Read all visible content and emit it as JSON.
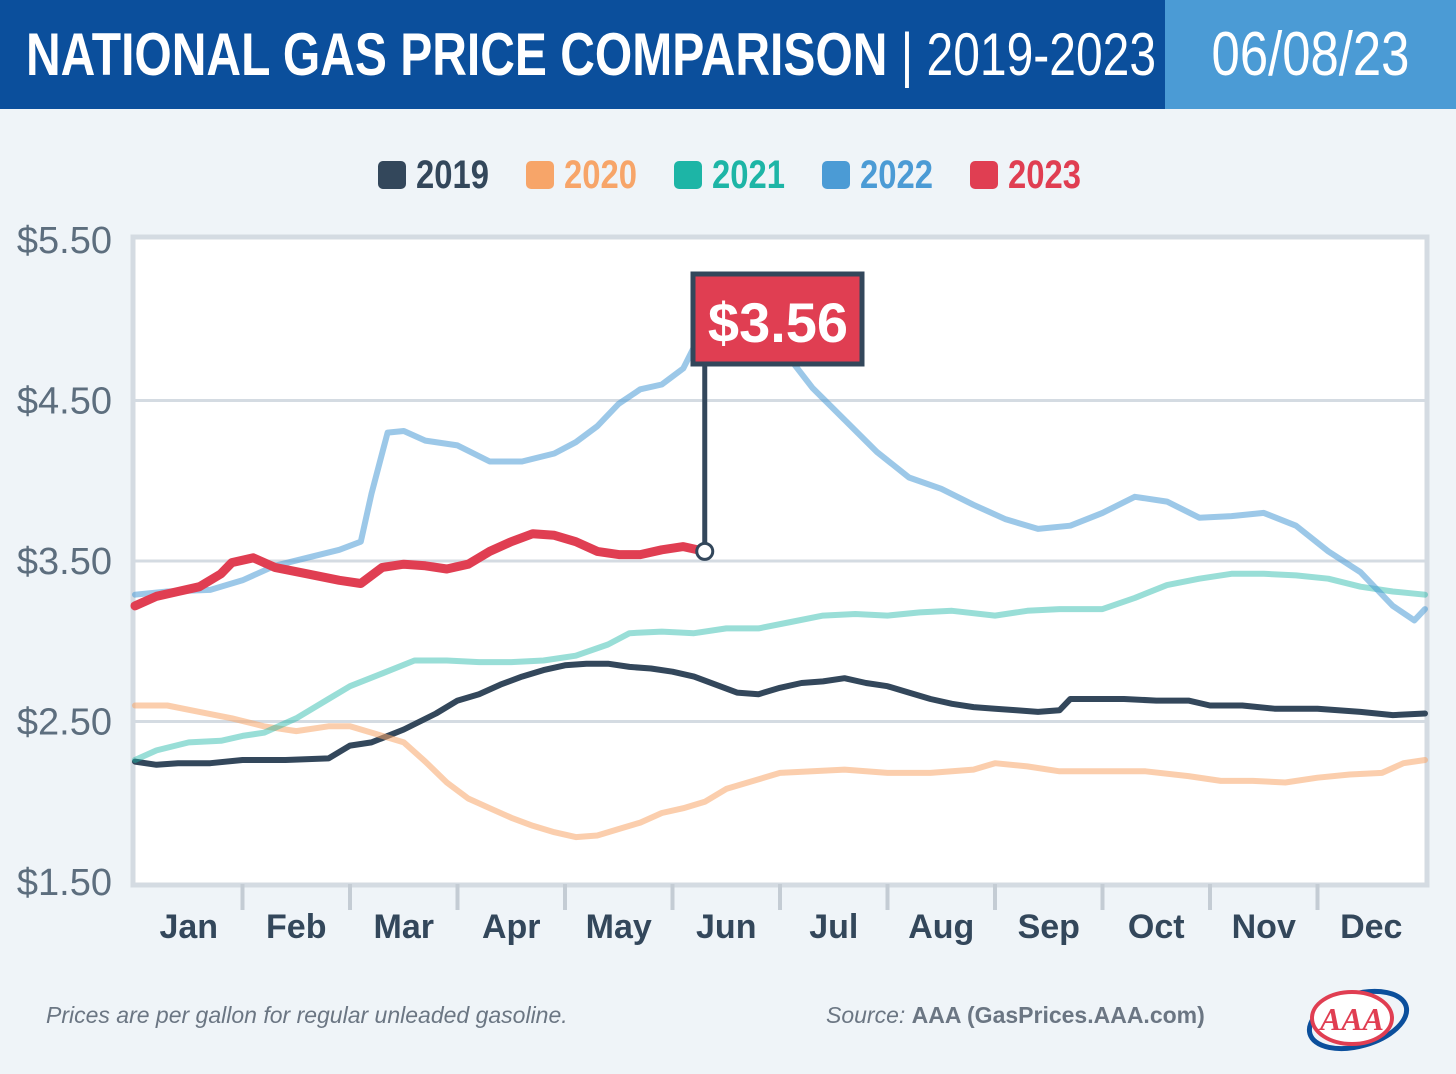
{
  "header": {
    "title_main": "NATIONAL GAS PRICE COMPARISON",
    "title_separator": "|",
    "title_years": "2019-2023",
    "date": "06/08/23"
  },
  "colors": {
    "header_bg": "#0b4f9c",
    "date_bg": "#4b9bd5",
    "y2019": "#33475b",
    "y2020": "#f7a569",
    "y2021": "#1db5a6",
    "y2022": "#4b9bd5",
    "y2023": "#e03e52"
  },
  "callout": {
    "label": "$3.56"
  },
  "footer": {
    "note": "Prices are per gallon for regular unleaded gasoline.",
    "source_label": "Source:",
    "source_value": "AAA (GasPrices.AAA.com)",
    "logo_text": "AAA"
  },
  "chart_data": {
    "type": "line",
    "title": "NATIONAL GAS PRICE COMPARISON | 2019-2023",
    "x_unit": "month (1 = start of Jan, 13 = end of Dec)",
    "categories": [
      "Jan",
      "Feb",
      "Mar",
      "Apr",
      "May",
      "Jun",
      "Jul",
      "Aug",
      "Sep",
      "Oct",
      "Nov",
      "Dec"
    ],
    "ylim": [
      1.5,
      5.5
    ],
    "yticks": [
      5.5,
      4.5,
      3.5,
      2.5,
      1.5
    ],
    "ytick_labels": [
      "$5.50",
      "$4.50",
      "$3.50",
      "$2.50",
      "$1.50"
    ],
    "grid": true,
    "legend_position": "top-center",
    "series": [
      {
        "name": "2019",
        "color": "#33475b",
        "points": [
          [
            1.0,
            2.25
          ],
          [
            1.2,
            2.23
          ],
          [
            1.4,
            2.24
          ],
          [
            1.7,
            2.24
          ],
          [
            2.0,
            2.26
          ],
          [
            2.2,
            2.26
          ],
          [
            2.4,
            2.26
          ],
          [
            2.8,
            2.27
          ],
          [
            3.0,
            2.35
          ],
          [
            3.2,
            2.37
          ],
          [
            3.5,
            2.45
          ],
          [
            3.8,
            2.55
          ],
          [
            4.0,
            2.63
          ],
          [
            4.2,
            2.67
          ],
          [
            4.4,
            2.73
          ],
          [
            4.6,
            2.78
          ],
          [
            4.8,
            2.82
          ],
          [
            5.0,
            2.85
          ],
          [
            5.2,
            2.86
          ],
          [
            5.4,
            2.86
          ],
          [
            5.6,
            2.84
          ],
          [
            5.8,
            2.83
          ],
          [
            6.0,
            2.81
          ],
          [
            6.2,
            2.78
          ],
          [
            6.4,
            2.73
          ],
          [
            6.6,
            2.68
          ],
          [
            6.8,
            2.67
          ],
          [
            7.0,
            2.71
          ],
          [
            7.2,
            2.74
          ],
          [
            7.4,
            2.75
          ],
          [
            7.6,
            2.77
          ],
          [
            7.8,
            2.74
          ],
          [
            8.0,
            2.72
          ],
          [
            8.2,
            2.68
          ],
          [
            8.4,
            2.64
          ],
          [
            8.6,
            2.61
          ],
          [
            8.8,
            2.59
          ],
          [
            9.0,
            2.58
          ],
          [
            9.2,
            2.57
          ],
          [
            9.4,
            2.56
          ],
          [
            9.6,
            2.57
          ],
          [
            9.7,
            2.64
          ],
          [
            9.9,
            2.64
          ],
          [
            10.2,
            2.64
          ],
          [
            10.5,
            2.63
          ],
          [
            10.8,
            2.63
          ],
          [
            11.0,
            2.6
          ],
          [
            11.3,
            2.6
          ],
          [
            11.6,
            2.58
          ],
          [
            12.0,
            2.58
          ],
          [
            12.4,
            2.56
          ],
          [
            12.7,
            2.54
          ],
          [
            13.0,
            2.55
          ]
        ]
      },
      {
        "name": "2020",
        "color": "#f7a569",
        "points": [
          [
            1.0,
            2.6
          ],
          [
            1.3,
            2.6
          ],
          [
            1.6,
            2.56
          ],
          [
            1.9,
            2.52
          ],
          [
            2.2,
            2.47
          ],
          [
            2.5,
            2.44
          ],
          [
            2.8,
            2.47
          ],
          [
            3.0,
            2.47
          ],
          [
            3.3,
            2.41
          ],
          [
            3.5,
            2.37
          ],
          [
            3.7,
            2.25
          ],
          [
            3.9,
            2.12
          ],
          [
            4.1,
            2.02
          ],
          [
            4.3,
            1.96
          ],
          [
            4.5,
            1.9
          ],
          [
            4.7,
            1.85
          ],
          [
            4.9,
            1.81
          ],
          [
            5.1,
            1.78
          ],
          [
            5.3,
            1.79
          ],
          [
            5.5,
            1.83
          ],
          [
            5.7,
            1.87
          ],
          [
            5.9,
            1.93
          ],
          [
            6.1,
            1.96
          ],
          [
            6.3,
            2.0
          ],
          [
            6.5,
            2.08
          ],
          [
            6.7,
            2.12
          ],
          [
            7.0,
            2.18
          ],
          [
            7.3,
            2.19
          ],
          [
            7.6,
            2.2
          ],
          [
            8.0,
            2.18
          ],
          [
            8.4,
            2.18
          ],
          [
            8.8,
            2.2
          ],
          [
            9.0,
            2.24
          ],
          [
            9.3,
            2.22
          ],
          [
            9.6,
            2.19
          ],
          [
            10.0,
            2.19
          ],
          [
            10.4,
            2.19
          ],
          [
            10.8,
            2.16
          ],
          [
            11.1,
            2.13
          ],
          [
            11.4,
            2.13
          ],
          [
            11.7,
            2.12
          ],
          [
            12.0,
            2.15
          ],
          [
            12.3,
            2.17
          ],
          [
            12.6,
            2.18
          ],
          [
            12.8,
            2.24
          ],
          [
            13.0,
            2.26
          ]
        ]
      },
      {
        "name": "2021",
        "color": "#1db5a6",
        "points": [
          [
            1.0,
            2.26
          ],
          [
            1.2,
            2.32
          ],
          [
            1.5,
            2.37
          ],
          [
            1.8,
            2.38
          ],
          [
            2.0,
            2.41
          ],
          [
            2.2,
            2.43
          ],
          [
            2.5,
            2.52
          ],
          [
            2.8,
            2.64
          ],
          [
            3.0,
            2.72
          ],
          [
            3.3,
            2.8
          ],
          [
            3.6,
            2.88
          ],
          [
            3.9,
            2.88
          ],
          [
            4.2,
            2.87
          ],
          [
            4.5,
            2.87
          ],
          [
            4.8,
            2.88
          ],
          [
            5.1,
            2.91
          ],
          [
            5.4,
            2.98
          ],
          [
            5.6,
            3.05
          ],
          [
            5.9,
            3.06
          ],
          [
            6.2,
            3.05
          ],
          [
            6.5,
            3.08
          ],
          [
            6.8,
            3.08
          ],
          [
            7.1,
            3.12
          ],
          [
            7.4,
            3.16
          ],
          [
            7.7,
            3.17
          ],
          [
            8.0,
            3.16
          ],
          [
            8.3,
            3.18
          ],
          [
            8.6,
            3.19
          ],
          [
            9.0,
            3.16
          ],
          [
            9.3,
            3.19
          ],
          [
            9.6,
            3.2
          ],
          [
            10.0,
            3.2
          ],
          [
            10.3,
            3.27
          ],
          [
            10.6,
            3.35
          ],
          [
            10.9,
            3.39
          ],
          [
            11.2,
            3.42
          ],
          [
            11.5,
            3.42
          ],
          [
            11.8,
            3.41
          ],
          [
            12.1,
            3.39
          ],
          [
            12.4,
            3.34
          ],
          [
            12.7,
            3.31
          ],
          [
            13.0,
            3.29
          ]
        ]
      },
      {
        "name": "2022",
        "color": "#4b9bd5",
        "points": [
          [
            1.0,
            3.29
          ],
          [
            1.3,
            3.31
          ],
          [
            1.7,
            3.32
          ],
          [
            2.0,
            3.38
          ],
          [
            2.3,
            3.47
          ],
          [
            2.6,
            3.52
          ],
          [
            2.9,
            3.57
          ],
          [
            3.1,
            3.62
          ],
          [
            3.2,
            3.92
          ],
          [
            3.35,
            4.3
          ],
          [
            3.5,
            4.31
          ],
          [
            3.7,
            4.25
          ],
          [
            4.0,
            4.22
          ],
          [
            4.3,
            4.12
          ],
          [
            4.6,
            4.12
          ],
          [
            4.9,
            4.17
          ],
          [
            5.1,
            4.24
          ],
          [
            5.3,
            4.34
          ],
          [
            5.5,
            4.48
          ],
          [
            5.7,
            4.57
          ],
          [
            5.9,
            4.6
          ],
          [
            6.1,
            4.7
          ],
          [
            6.25,
            4.9
          ],
          [
            6.45,
            4.96
          ],
          [
            6.7,
            4.95
          ],
          [
            7.0,
            4.84
          ],
          [
            7.3,
            4.58
          ],
          [
            7.6,
            4.38
          ],
          [
            7.9,
            4.18
          ],
          [
            8.2,
            4.02
          ],
          [
            8.5,
            3.95
          ],
          [
            8.8,
            3.85
          ],
          [
            9.1,
            3.76
          ],
          [
            9.4,
            3.7
          ],
          [
            9.7,
            3.72
          ],
          [
            10.0,
            3.8
          ],
          [
            10.3,
            3.9
          ],
          [
            10.6,
            3.87
          ],
          [
            10.9,
            3.77
          ],
          [
            11.2,
            3.78
          ],
          [
            11.5,
            3.8
          ],
          [
            11.8,
            3.72
          ],
          [
            12.1,
            3.56
          ],
          [
            12.4,
            3.43
          ],
          [
            12.7,
            3.22
          ],
          [
            12.9,
            3.13
          ],
          [
            13.0,
            3.2
          ]
        ]
      },
      {
        "name": "2023",
        "color": "#e03e52",
        "points": [
          [
            1.0,
            3.22
          ],
          [
            1.2,
            3.28
          ],
          [
            1.4,
            3.31
          ],
          [
            1.6,
            3.34
          ],
          [
            1.8,
            3.42
          ],
          [
            1.9,
            3.49
          ],
          [
            2.1,
            3.52
          ],
          [
            2.3,
            3.46
          ],
          [
            2.6,
            3.42
          ],
          [
            2.9,
            3.38
          ],
          [
            3.1,
            3.36
          ],
          [
            3.3,
            3.46
          ],
          [
            3.5,
            3.48
          ],
          [
            3.7,
            3.47
          ],
          [
            3.9,
            3.45
          ],
          [
            4.1,
            3.48
          ],
          [
            4.3,
            3.56
          ],
          [
            4.5,
            3.62
          ],
          [
            4.7,
            3.67
          ],
          [
            4.9,
            3.66
          ],
          [
            5.1,
            3.62
          ],
          [
            5.3,
            3.56
          ],
          [
            5.5,
            3.54
          ],
          [
            5.7,
            3.54
          ],
          [
            5.9,
            3.57
          ],
          [
            6.1,
            3.59
          ],
          [
            6.3,
            3.56
          ]
        ]
      }
    ],
    "annotation": {
      "label": "$3.56",
      "series": "2023",
      "x": 6.3,
      "y": 3.56
    }
  }
}
